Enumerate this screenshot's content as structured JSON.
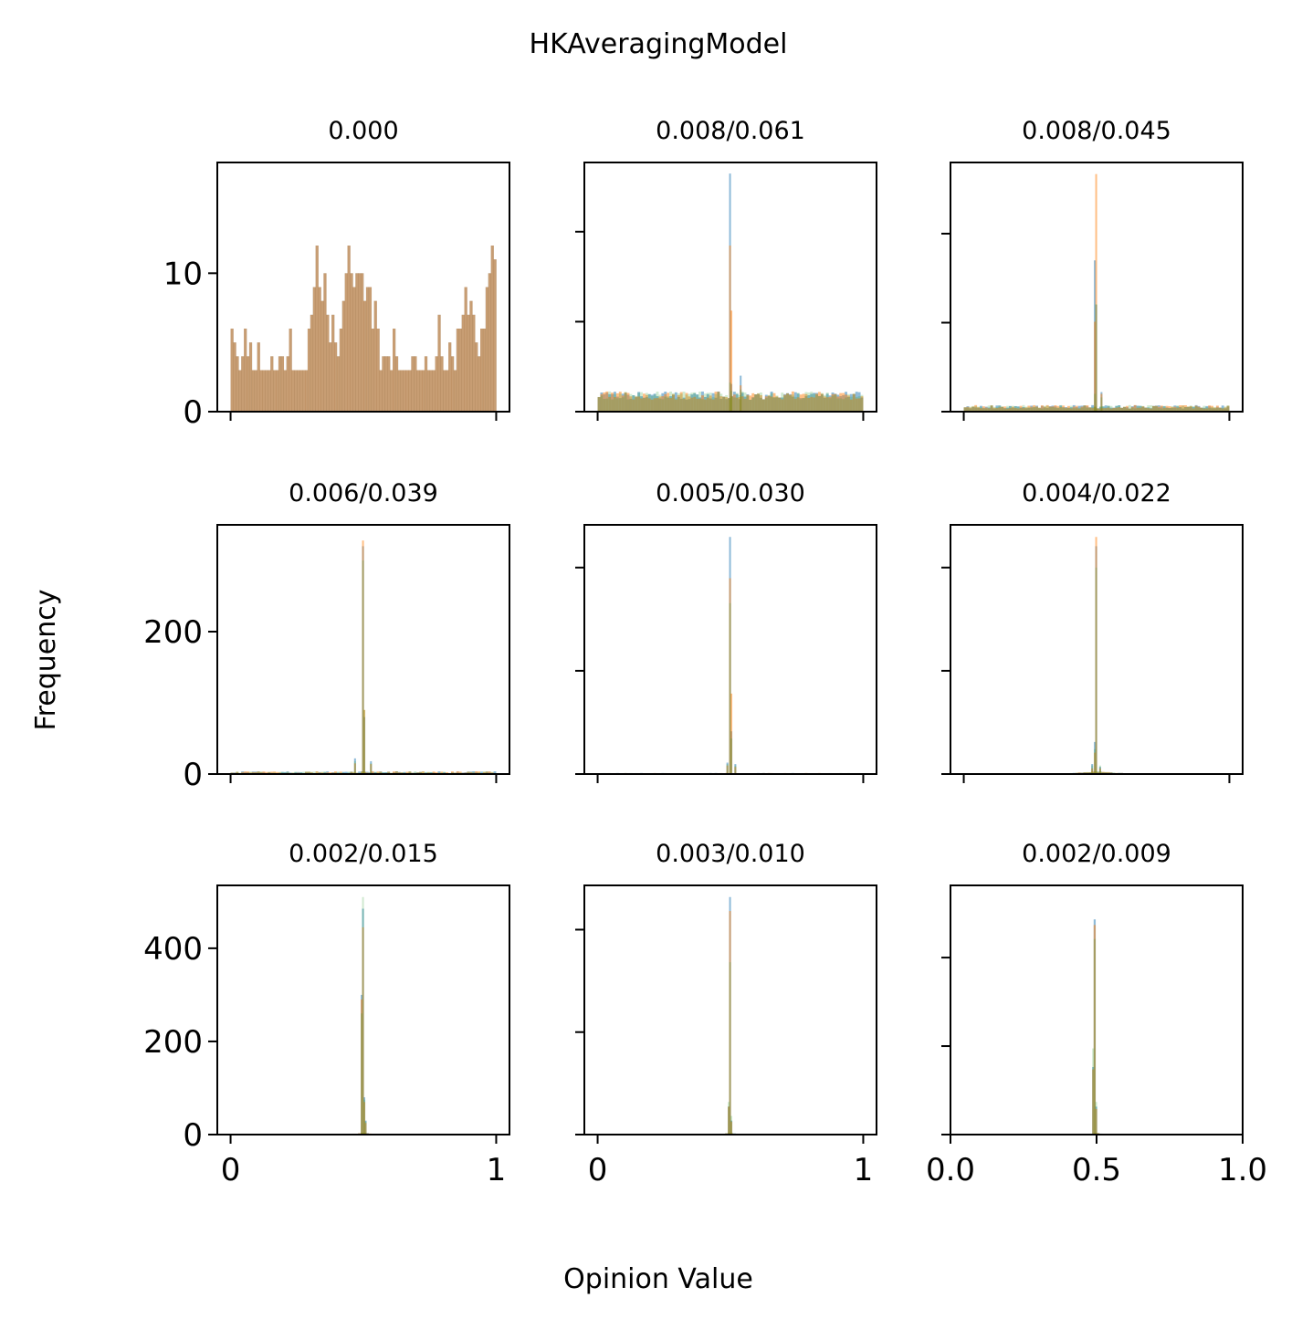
{
  "chart_data": {
    "type": "bar",
    "title": "HKAveragingModel",
    "xlabel": "Opinion Value",
    "ylabel": "Frequency",
    "colors": {
      "series_blue": "#1f77b4",
      "series_orange": "#ff7f0e",
      "series_green": "#2ca02c",
      "axes": "#000000",
      "background": "#ffffff"
    },
    "panels": [
      {
        "title": "0.000",
        "row": 0,
        "col": 0,
        "ylim": [
          0,
          18
        ],
        "yticks": [
          0,
          10
        ],
        "xlim": [
          -0.05,
          1.05
        ],
        "xticks": [
          0,
          1
        ],
        "xticklabels": [],
        "show_yticklabels": true,
        "uniform_seed": 11,
        "peaks": []
      },
      {
        "title": "0.008/0.061",
        "row": 0,
        "col": 1,
        "ylim": [
          0,
          18
        ],
        "yticks": [
          0,
          6.5,
          13
        ],
        "xlim": [
          -0.05,
          1.05
        ],
        "xticks": [
          0,
          1
        ],
        "xticklabels": [],
        "show_yticklabels": false,
        "background": {
          "center": 0.5,
          "spread": 0.5,
          "base": 1.1,
          "noise": 0.6
        },
        "peaks": [
          {
            "x": 0.5,
            "blue": 17.2,
            "orange": 12.0,
            "green": 2.1
          },
          {
            "x": 0.505,
            "blue": 2.0,
            "orange": 7.3,
            "green": 1.5
          },
          {
            "x": 0.54,
            "blue": 2.6,
            "orange": 1.9,
            "green": 1.6
          }
        ]
      },
      {
        "title": "0.008/0.045",
        "row": 0,
        "col": 2,
        "ylim": [
          0,
          28
        ],
        "yticks": [
          0,
          10,
          20
        ],
        "xlim": [
          -0.05,
          1.05
        ],
        "xticks": [
          0,
          1
        ],
        "xticklabels": [],
        "show_yticklabels": false,
        "background": {
          "center": 0.5,
          "spread": 0.5,
          "base": 0.5,
          "noise": 0.4
        },
        "peaks": [
          {
            "x": 0.495,
            "blue": 17.0,
            "orange": 10.1,
            "green": 2.0
          },
          {
            "x": 0.5,
            "blue": 12.0,
            "orange": 26.7,
            "green": 12.1
          },
          {
            "x": 0.52,
            "blue": 2.2,
            "orange": 2.0,
            "green": 1.6
          }
        ]
      },
      {
        "title": "0.006/0.039",
        "row": 1,
        "col": 0,
        "ylim": [
          0,
          350
        ],
        "yticks": [
          0,
          200
        ],
        "xlim": [
          -0.05,
          1.05
        ],
        "xticks": [
          0,
          1
        ],
        "xticklabels": [],
        "show_yticklabels": true,
        "background": {
          "center": 0.5,
          "spread": 0.5,
          "base": 2,
          "noise": 3
        },
        "peaks": [
          {
            "x": 0.5,
            "blue": 320,
            "orange": 328,
            "green": 300
          },
          {
            "x": 0.505,
            "blue": 80,
            "orange": 90,
            "green": 90
          },
          {
            "x": 0.47,
            "blue": 22,
            "orange": 15,
            "green": 18
          },
          {
            "x": 0.53,
            "blue": 18,
            "orange": 14,
            "green": 15
          }
        ]
      },
      {
        "title": "0.005/0.030",
        "row": 1,
        "col": 1,
        "ylim": [
          0,
          350
        ],
        "yticks": [
          0,
          145,
          290
        ],
        "xlim": [
          -0.05,
          1.05
        ],
        "xticks": [
          0,
          1
        ],
        "xticklabels": [],
        "show_yticklabels": false,
        "background": {
          "center": 0.5,
          "spread": 0.5,
          "base": 0.6,
          "noise": 1.5
        },
        "peaks": [
          {
            "x": 0.5,
            "blue": 333,
            "orange": 275,
            "green": 240
          },
          {
            "x": 0.505,
            "blue": 60,
            "orange": 113,
            "green": 50
          },
          {
            "x": 0.49,
            "blue": 16,
            "orange": 12,
            "green": 14
          },
          {
            "x": 0.52,
            "blue": 14,
            "orange": 10,
            "green": 12
          }
        ]
      },
      {
        "title": "0.004/0.022",
        "row": 1,
        "col": 2,
        "ylim": [
          0,
          350
        ],
        "yticks": [
          0,
          145,
          290
        ],
        "xlim": [
          -0.05,
          1.05
        ],
        "xticks": [
          0,
          1
        ],
        "xticklabels": [],
        "show_yticklabels": false,
        "background": {
          "center": 0.5,
          "spread": 0.12,
          "base": 0.3,
          "noise": 1.0
        },
        "peaks": [
          {
            "x": 0.5,
            "blue": 320,
            "orange": 333,
            "green": 290
          },
          {
            "x": 0.495,
            "blue": 45,
            "orange": 30,
            "green": 35
          },
          {
            "x": 0.485,
            "blue": 14,
            "orange": 8,
            "green": 12
          },
          {
            "x": 0.515,
            "blue": 10,
            "orange": 8,
            "green": 12
          }
        ]
      },
      {
        "title": "0.002/0.015",
        "row": 2,
        "col": 0,
        "ylim": [
          0,
          535
        ],
        "yticks": [
          0,
          200,
          400
        ],
        "xlim": [
          -0.05,
          1.05
        ],
        "xticks": [
          0,
          1
        ],
        "xticklabels": [
          "0",
          "1"
        ],
        "show_yticklabels": true,
        "background": {
          "center": 0.5,
          "spread": 0.06,
          "base": 0.2,
          "noise": 1.0
        },
        "peaks": [
          {
            "x": 0.5,
            "blue": 485,
            "orange": 445,
            "green": 510
          },
          {
            "x": 0.495,
            "blue": 300,
            "orange": 290,
            "green": 260
          },
          {
            "x": 0.505,
            "blue": 80,
            "orange": 70,
            "green": 75
          },
          {
            "x": 0.51,
            "blue": 30,
            "orange": 25,
            "green": 28
          }
        ]
      },
      {
        "title": "0.003/0.010",
        "row": 2,
        "col": 1,
        "ylim": [
          0,
          535
        ],
        "yticks": [
          0,
          220,
          440
        ],
        "xlim": [
          -0.05,
          1.05
        ],
        "xticks": [
          0,
          1
        ],
        "xticklabels": [
          "0",
          "1"
        ],
        "show_yticklabels": false,
        "background": {
          "center": 0.5,
          "spread": 0.05,
          "base": 0.2,
          "noise": 1.0
        },
        "peaks": [
          {
            "x": 0.5,
            "blue": 510,
            "orange": 480,
            "green": 370
          },
          {
            "x": 0.495,
            "blue": 60,
            "orange": 60,
            "green": 70
          },
          {
            "x": 0.505,
            "blue": 30,
            "orange": 28,
            "green": 40
          }
        ]
      },
      {
        "title": "0.002/0.009",
        "row": 2,
        "col": 2,
        "ylim": [
          0,
          535
        ],
        "yticks": [
          0,
          190,
          380
        ],
        "xlim": [
          0,
          1
        ],
        "xticks": [
          0,
          0.5,
          1
        ],
        "xticklabels": [
          "0.0",
          "0.5",
          "1.0"
        ],
        "show_yticklabels": false,
        "background": {
          "center": 0.5,
          "spread": 0.03,
          "base": 0.2,
          "noise": 1.0
        },
        "peaks": [
          {
            "x": 0.49,
            "blue": 145,
            "orange": 140,
            "green": 185
          },
          {
            "x": 0.495,
            "blue": 462,
            "orange": 450,
            "green": 420
          },
          {
            "x": 0.5,
            "blue": 60,
            "orange": 55,
            "green": 70
          }
        ]
      }
    ]
  }
}
